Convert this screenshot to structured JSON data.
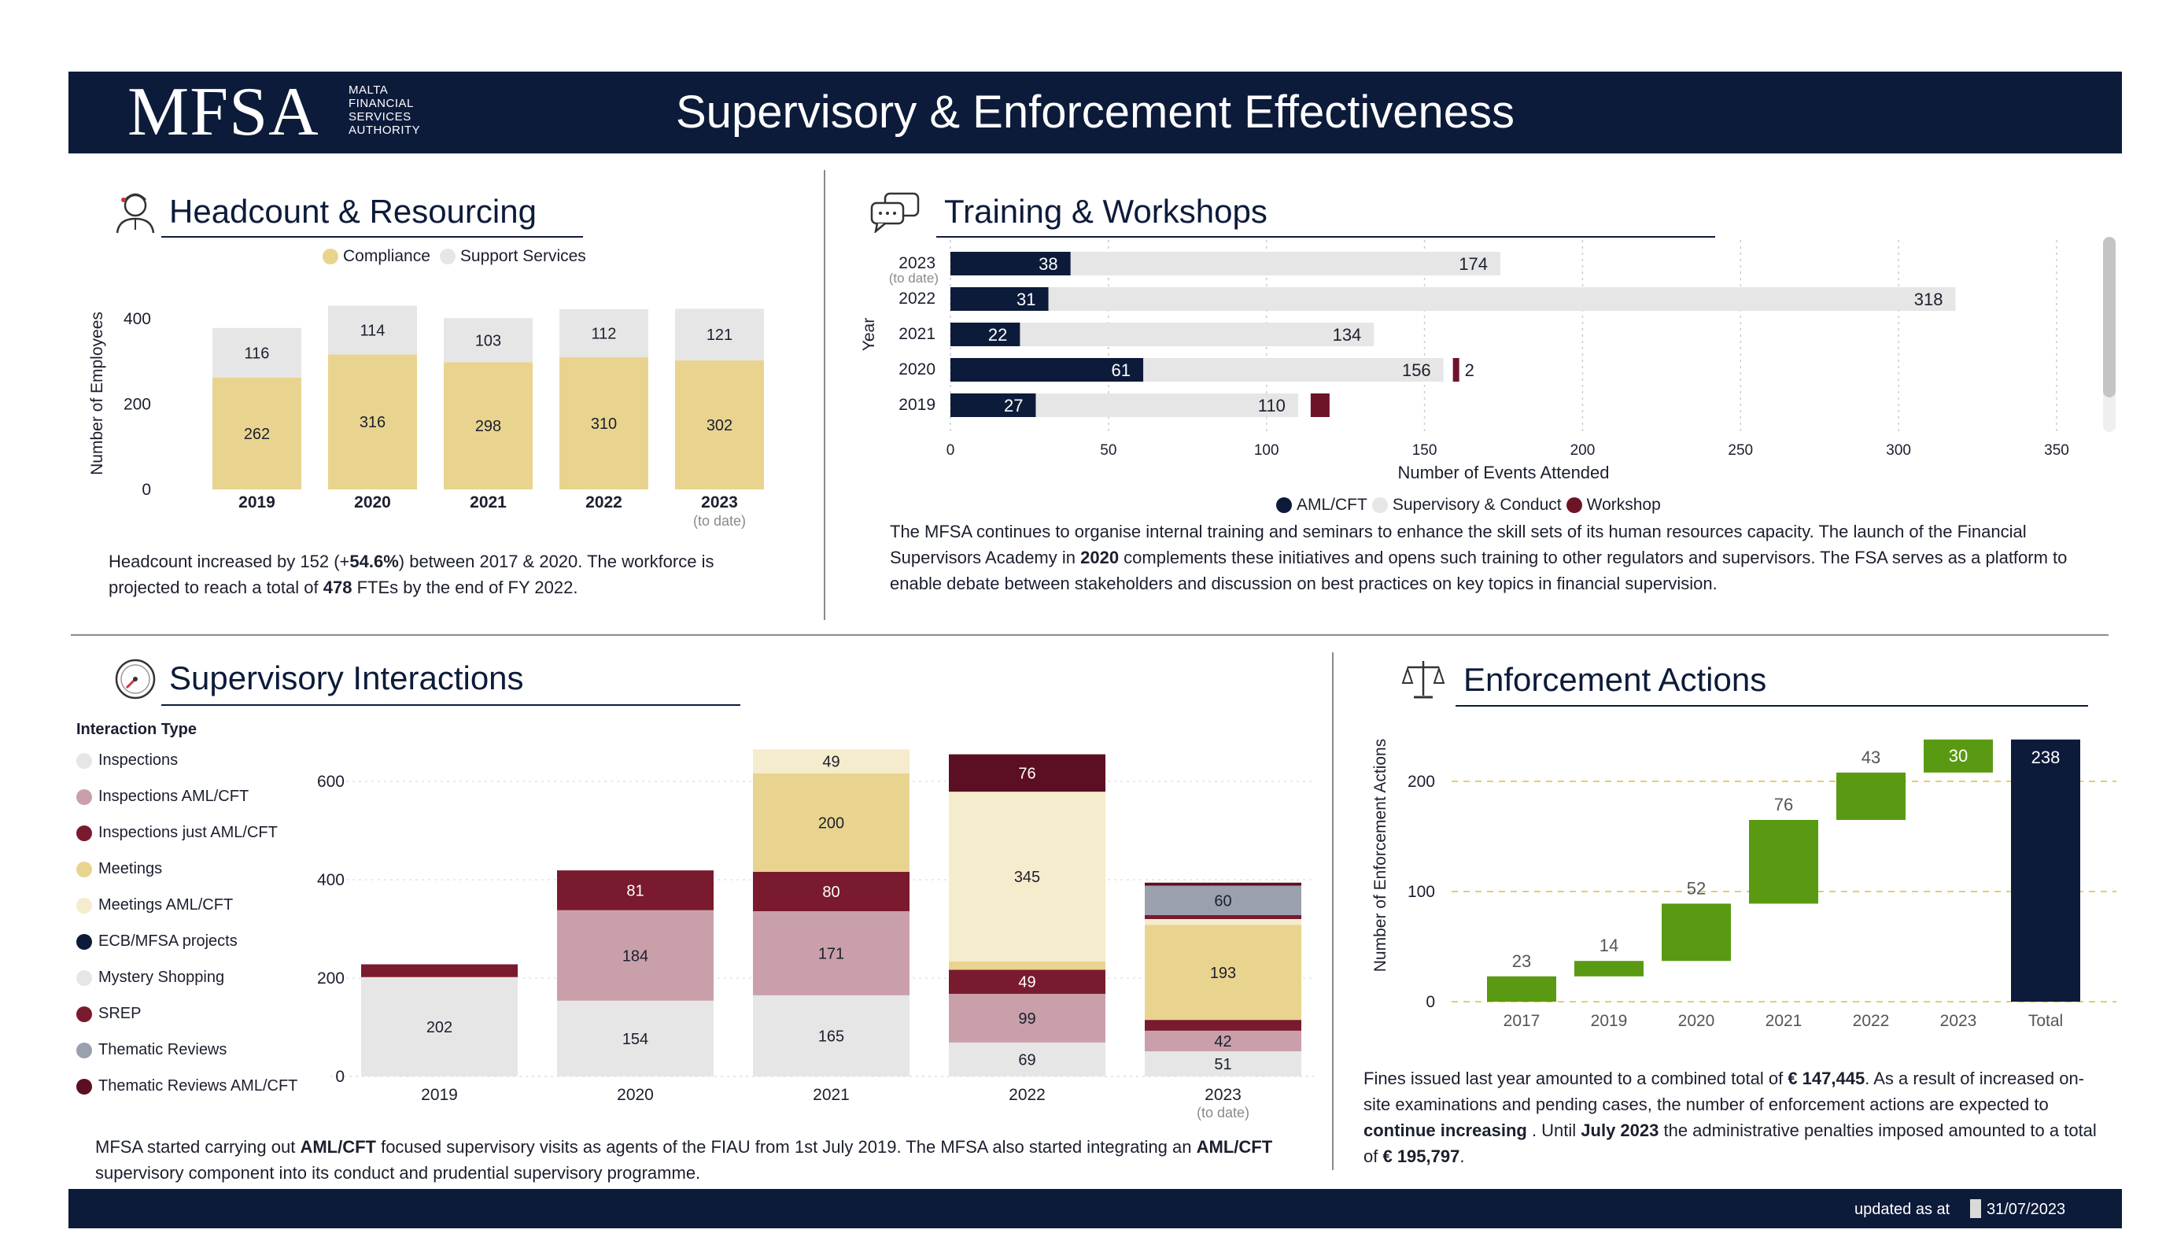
{
  "header": {
    "logo": "MFSA",
    "logo_sub": [
      "MALTA",
      "FINANCIAL",
      "SERVICES",
      "AUTHORITY"
    ],
    "title": "Supervisory & Enforcement Effectiveness"
  },
  "footer": {
    "updated_label": "updated as at",
    "updated_date": "31/07/2023"
  },
  "colors": {
    "navy": "#0d1b3a",
    "compliance": "#e9d48f",
    "support": "#e6e6e6",
    "aml": "#0d1b3a",
    "supervisory": "#e6e6e6",
    "workshop": "#6d1428",
    "inspections": "#e6e6e6",
    "inspections_aml": "#c9a0aa",
    "inspections_just_aml": "#7a1a2e",
    "meetings": "#e9d48f",
    "meetings_aml": "#f5ebcd",
    "ecb": "#0d1b3a",
    "mystery": "#e6e6e6",
    "srep": "#7a1a2e",
    "thematic": "#9aa0ad",
    "thematic_aml": "#5c0f22",
    "green": "#5a9a12"
  },
  "headcount": {
    "title": "Headcount & Resourcing",
    "legend": [
      "Compliance",
      "Support Services"
    ],
    "paragraph_html": "Headcount increased by 152 (+<b>54.6%</b>) between 2017 & 2020. The workforce is projected to reach a total of <b>478</b> FTEs by the end of FY 2022."
  },
  "training": {
    "title": "Training & Workshops",
    "legend": [
      "AML/CFT",
      "Supervisory & Conduct",
      "Workshop"
    ],
    "paragraph_html": "The MFSA continues to organise internal training and seminars to enhance the skill sets of its human resources capacity. The launch of the Financial Supervisors Academy in <b>2020</b> complements these initiatives and opens such training to other regulators and supervisors. The FSA serves as a platform to enable debate between stakeholders and discussion on best practices on key topics in financial supervision."
  },
  "supervisory": {
    "title": "Supervisory Interactions",
    "legend_title": "Interaction Type",
    "legend": [
      {
        "label": "Inspections",
        "color": "#e6e6e6"
      },
      {
        "label": "Inspections  AML/CFT",
        "color": "#c9a0aa"
      },
      {
        "label": "Inspections just AML/CFT",
        "color": "#7a1a2e"
      },
      {
        "label": "Meetings",
        "color": "#e9d48f"
      },
      {
        "label": "Meetings  AML/CFT",
        "color": "#f5ebcd"
      },
      {
        "label": "ECB/MFSA projects",
        "color": "#0d1b3a"
      },
      {
        "label": "Mystery Shopping",
        "color": "#e6e6e6"
      },
      {
        "label": "SREP",
        "color": "#7a1a2e"
      },
      {
        "label": "Thematic Reviews",
        "color": "#9aa0ad"
      },
      {
        "label": "Thematic Reviews   AML/CFT",
        "color": "#5c0f22"
      }
    ],
    "paragraph_html": "MFSA started carrying out <b>AML/CFT</b> focused supervisory visits as agents of the FIAU from 1st July 2019. The MFSA also started integrating an <b>AML/CFT</b> supervisory component into its conduct and prudential supervisory programme."
  },
  "enforcement": {
    "title": "Enforcement Actions",
    "paragraph_html": "Fines issued last year amounted to a combined total of <b>€ 147,445</b>. As a result of increased on-site examinations and pending cases, the number of enforcement actions are expected to <b>continue increasing</b> . Until <b>July 2023</b> the administrative penalties imposed amounted to a total of <b>€ 195,797</b>."
  },
  "chart_data": [
    {
      "id": "headcount",
      "type": "bar",
      "stacked": true,
      "categories": [
        "2019",
        "2020",
        "2021",
        "2022",
        "2023"
      ],
      "category_sublabels": [
        "",
        "",
        "",
        "",
        "(to date)"
      ],
      "series": [
        {
          "name": "Compliance",
          "values": [
            262,
            316,
            298,
            310,
            302
          ],
          "color": "#e9d48f"
        },
        {
          "name": "Support Services",
          "values": [
            116,
            114,
            103,
            112,
            121
          ],
          "color": "#e6e6e6"
        }
      ],
      "ylabel": "Number of Employees",
      "ylim": [
        0,
        420
      ],
      "yticks": [
        0,
        200,
        400
      ],
      "legend": "top"
    },
    {
      "id": "training",
      "type": "bar",
      "orientation": "horizontal",
      "categories": [
        "2023",
        "2022",
        "2021",
        "2020",
        "2019"
      ],
      "category_sublabels": [
        "(to date)",
        "",
        "",
        "",
        ""
      ],
      "series": [
        {
          "name": "AML/CFT",
          "values": [
            38,
            31,
            22,
            61,
            27
          ],
          "color": "#0d1b3a"
        },
        {
          "name": "Supervisory & Conduct",
          "values": [
            174,
            318,
            134,
            156,
            110
          ],
          "color": "#e6e6e6"
        },
        {
          "name": "Workshop",
          "values": [
            0,
            0,
            0,
            2,
            0
          ],
          "color": "#6d1428"
        }
      ],
      "xlabel": "Number of Events Attended",
      "ylabel": "Year",
      "xlim": [
        0,
        350
      ],
      "xticks": [
        0,
        50,
        100,
        150,
        200,
        250,
        300,
        350
      ],
      "legend": "bottom"
    },
    {
      "id": "supervisory",
      "type": "bar",
      "stacked": true,
      "categories": [
        "2019",
        "2020",
        "2021",
        "2022",
        "2023"
      ],
      "category_sublabels": [
        "",
        "",
        "",
        "",
        "(to date)"
      ],
      "ylim": [
        0,
        680
      ],
      "yticks": [
        0,
        200,
        400,
        600
      ],
      "stacks": [
        [
          {
            "series": "Inspections",
            "value": 202,
            "label": "202",
            "color": "#e6e6e6"
          },
          {
            "series": "Inspections just AML/CFT",
            "value": 26,
            "label": "",
            "color": "#7a1a2e"
          }
        ],
        [
          {
            "series": "Inspections",
            "value": 154,
            "label": "154",
            "color": "#e6e6e6"
          },
          {
            "series": "Inspections  AML/CFT",
            "value": 184,
            "label": "184",
            "color": "#c9a0aa"
          },
          {
            "series": "Inspections just AML/CFT",
            "value": 81,
            "label": "81",
            "color": "#7a1a2e"
          }
        ],
        [
          {
            "series": "Inspections",
            "value": 165,
            "label": "165",
            "color": "#e6e6e6"
          },
          {
            "series": "Inspections  AML/CFT",
            "value": 171,
            "label": "171",
            "color": "#c9a0aa"
          },
          {
            "series": "Inspections just AML/CFT",
            "value": 80,
            "label": "80",
            "color": "#7a1a2e"
          },
          {
            "series": "Meetings",
            "value": 200,
            "label": "200",
            "color": "#e9d48f"
          },
          {
            "series": "Meetings  AML/CFT",
            "value": 49,
            "label": "49",
            "color": "#f5ebcd"
          }
        ],
        [
          {
            "series": "Inspections",
            "value": 69,
            "label": "69",
            "color": "#e6e6e6"
          },
          {
            "series": "Inspections  AML/CFT",
            "value": 99,
            "label": "99",
            "color": "#c9a0aa"
          },
          {
            "series": "Inspections just AML/CFT",
            "value": 49,
            "label": "49",
            "color": "#7a1a2e"
          },
          {
            "series": "Meetings",
            "value": 17,
            "label": "",
            "color": "#e9d48f"
          },
          {
            "series": "Meetings  AML/CFT",
            "value": 345,
            "label": "345",
            "color": "#f5ebcd"
          },
          {
            "series": "Thematic Reviews   AML/CFT",
            "value": 76,
            "label": "76",
            "color": "#5c0f22"
          }
        ],
        [
          {
            "series": "Inspections",
            "value": 51,
            "label": "51",
            "color": "#e6e6e6"
          },
          {
            "series": "Inspections  AML/CFT",
            "value": 42,
            "label": "42",
            "color": "#c9a0aa"
          },
          {
            "series": "Inspections just AML/CFT",
            "value": 22,
            "label": "",
            "color": "#7a1a2e"
          },
          {
            "series": "Meetings",
            "value": 193,
            "label": "193",
            "color": "#e9d48f"
          },
          {
            "series": "Meetings  AML/CFT",
            "value": 12,
            "label": "",
            "color": "#f5ebcd"
          },
          {
            "series": "SREP",
            "value": 8,
            "label": "",
            "color": "#7a1a2e"
          },
          {
            "series": "Thematic Reviews",
            "value": 60,
            "label": "60",
            "color": "#9aa0ad"
          },
          {
            "series": "Thematic Reviews   AML/CFT",
            "value": 6,
            "label": "",
            "color": "#5c0f22"
          }
        ]
      ]
    },
    {
      "id": "enforcement",
      "type": "waterfall",
      "categories": [
        "2017",
        "2019",
        "2020",
        "2021",
        "2022",
        "2023",
        "Total"
      ],
      "values": [
        23,
        14,
        52,
        76,
        43,
        30,
        238
      ],
      "ylabel": "Number of Enforcement Actions",
      "ylim": [
        0,
        240
      ],
      "yticks": [
        0,
        100,
        200
      ],
      "grid": true
    }
  ]
}
